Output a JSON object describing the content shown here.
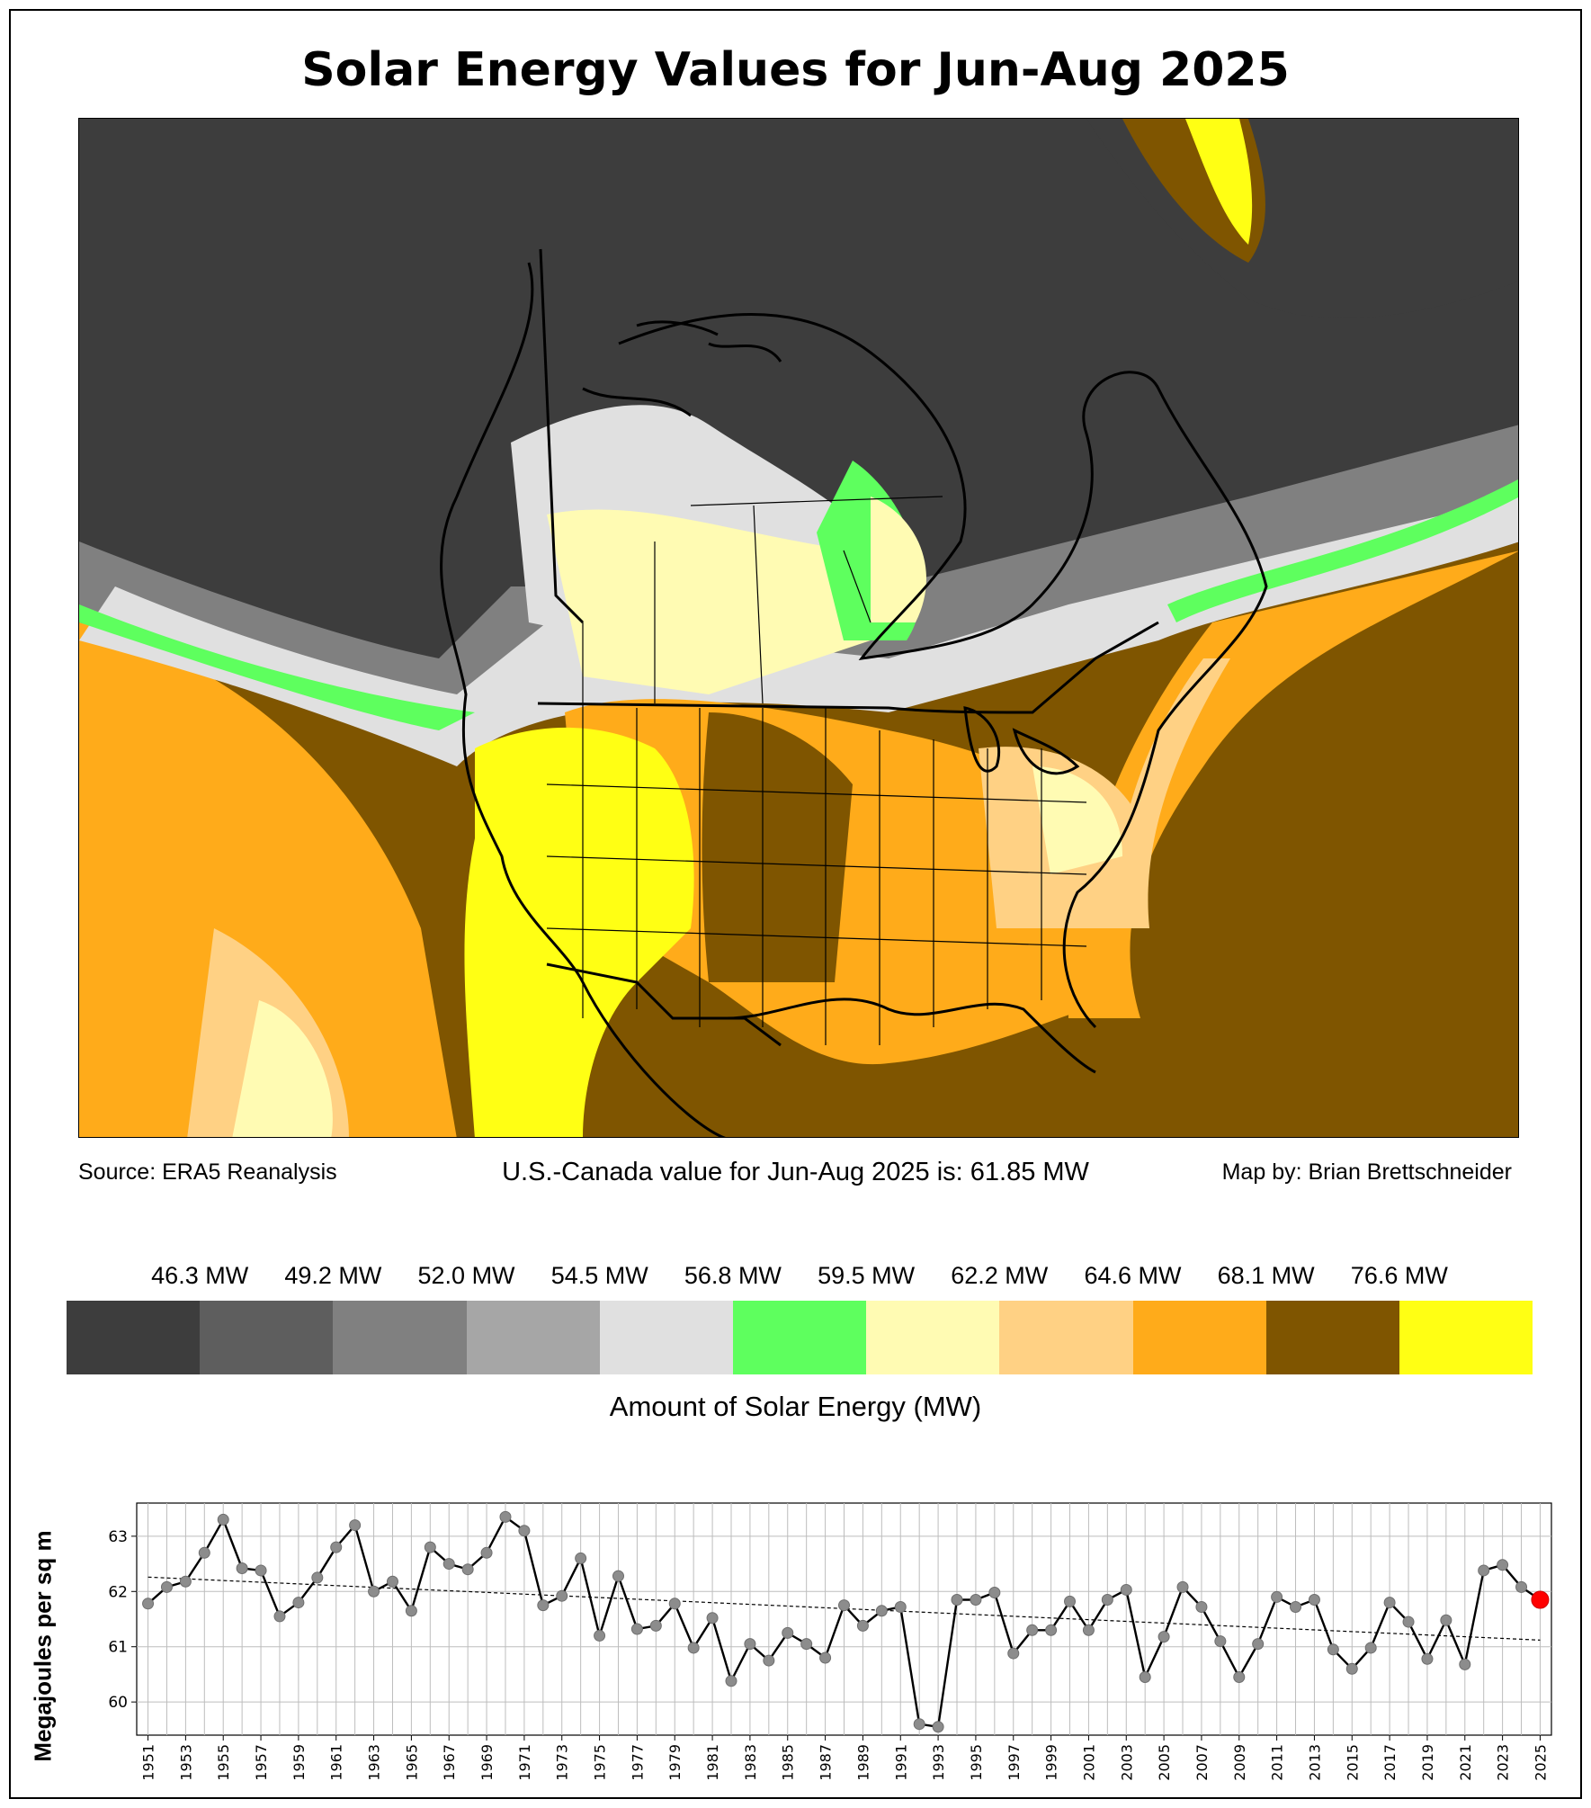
{
  "title": "Solar Energy Values for Jun-Aug 2025",
  "captions": {
    "source": "Source: ERA5 Reanalysis",
    "summary": "U.S.-Canada value for Jun-Aug 2025 is: 61.85 MW",
    "credit": "Map by: Brian Brettschneider"
  },
  "colorbar": {
    "title": "Amount of Solar Energy (MW)",
    "labels": [
      "46.3 MW",
      "49.2 MW",
      "52.0 MW",
      "54.5 MW",
      "56.8 MW",
      "59.5 MW",
      "62.2 MW",
      "64.6 MW",
      "68.1 MW",
      "76.6 MW"
    ],
    "colors": [
      "#3d3d3d",
      "#5e5e5e",
      "#808080",
      "#a6a6a6",
      "#e0e0e0",
      "#5eff5e",
      "#fffbb3",
      "#ffd184",
      "#ffab1a",
      "#7f5500",
      "#ffff14"
    ]
  },
  "chart_data": {
    "type": "line",
    "title": "",
    "xlabel": "",
    "ylabel": "Megajoules per sq m",
    "x": [
      1951,
      1952,
      1953,
      1954,
      1955,
      1956,
      1957,
      1958,
      1959,
      1960,
      1961,
      1962,
      1963,
      1964,
      1965,
      1966,
      1967,
      1968,
      1969,
      1970,
      1971,
      1972,
      1973,
      1974,
      1975,
      1976,
      1977,
      1978,
      1979,
      1980,
      1981,
      1982,
      1983,
      1984,
      1985,
      1986,
      1987,
      1988,
      1989,
      1990,
      1991,
      1992,
      1993,
      1994,
      1995,
      1996,
      1997,
      1998,
      1999,
      2000,
      2001,
      2002,
      2003,
      2004,
      2005,
      2006,
      2007,
      2008,
      2009,
      2010,
      2011,
      2012,
      2013,
      2014,
      2015,
      2016,
      2017,
      2018,
      2019,
      2020,
      2021,
      2022,
      2023,
      2024,
      2025
    ],
    "xticks": [
      "1951",
      "1953",
      "1955",
      "1957",
      "1959",
      "1961",
      "1963",
      "1965",
      "1967",
      "1969",
      "1971",
      "1973",
      "1975",
      "1977",
      "1979",
      "1981",
      "1983",
      "1985",
      "1987",
      "1989",
      "1991",
      "1993",
      "1995",
      "1997",
      "1999",
      "2001",
      "2003",
      "2005",
      "2007",
      "2009",
      "2011",
      "2013",
      "2015",
      "2017",
      "2019",
      "2021",
      "2023",
      "2025"
    ],
    "series": [
      {
        "values": [
          61.78,
          62.08,
          62.18,
          62.7,
          63.3,
          62.42,
          62.38,
          61.55,
          61.8,
          62.25,
          62.8,
          63.2,
          62.0,
          62.18,
          61.65,
          62.8,
          62.5,
          62.4,
          62.7,
          63.35,
          63.1,
          61.75,
          61.92,
          62.6,
          61.2,
          62.28,
          61.32,
          61.38,
          61.78,
          60.98,
          61.52,
          60.38,
          61.05,
          60.75,
          61.25,
          61.05,
          60.8,
          61.75,
          61.38,
          61.65,
          61.72,
          59.6,
          59.55,
          61.85,
          61.85,
          61.98,
          60.88,
          61.3,
          61.3,
          61.82,
          61.3,
          61.85,
          62.03,
          60.45,
          61.18,
          62.08,
          61.72,
          61.1,
          60.45,
          61.05,
          61.9,
          61.72,
          61.85,
          60.95,
          60.6,
          60.98,
          61.8,
          61.45,
          60.78,
          61.48,
          60.68,
          62.38,
          62.48,
          62.08,
          61.85
        ]
      }
    ],
    "trend": [
      62.26,
      61.12
    ],
    "highlight": {
      "year": 2025,
      "value": 61.85,
      "color": "#ff0000"
    },
    "ylim": [
      59.4,
      63.6
    ],
    "yticks": [
      60,
      61,
      62,
      63
    ],
    "grid": true
  }
}
